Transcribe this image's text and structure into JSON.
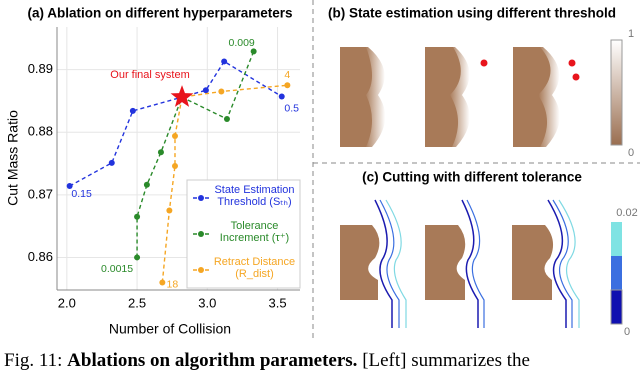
{
  "chart_data": {
    "type": "line",
    "title": "(a) Ablation on different hyperparameters",
    "x_label": "Number of Collision",
    "y_label": "Cut Mass Ratio",
    "xlim": [
      1.93,
      3.66
    ],
    "ylim": [
      0.8548,
      0.8968
    ],
    "xticks": [
      {
        "value": 2,
        "label": "2.0"
      },
      2.5,
      {
        "value": 3,
        "label": "3.0"
      },
      3.5
    ],
    "yticks": [
      0.86,
      0.87,
      0.88,
      0.89
    ],
    "grid": true,
    "legend": "lower right",
    "highlight": {
      "label": "Our final system",
      "x": 2.82,
      "y": 0.8856,
      "color": "#e8141c"
    },
    "series": [
      {
        "name": "State Estimation Threshold (Sₜₕ)",
        "color": "#2233dd",
        "x": [
          2.02,
          2.32,
          2.47,
          2.82,
          2.99,
          3.12,
          3.53
        ],
        "values": [
          0.8714,
          0.8751,
          0.8834,
          0.8856,
          0.8867,
          0.8913,
          0.8857
        ],
        "point_labels": [
          "0.15",
          null,
          null,
          null,
          null,
          null,
          "0.5"
        ]
      },
      {
        "name": "Tolerance Increment (τ⁺)",
        "color": "#2a8a2a",
        "x": [
          2.5,
          2.5,
          2.57,
          2.67,
          2.82,
          3.14,
          3.33
        ],
        "values": [
          0.86,
          0.8665,
          0.8716,
          0.8768,
          0.8856,
          0.8821,
          0.8929
        ],
        "point_labels": [
          "0.0015",
          null,
          null,
          null,
          null,
          null,
          "0.009"
        ]
      },
      {
        "name": "Retract Distance (R_dist)",
        "color": "#f5a623",
        "x": [
          2.68,
          2.73,
          2.77,
          2.77,
          2.82,
          3.1,
          3.57
        ],
        "values": [
          0.856,
          0.8675,
          0.8746,
          0.8794,
          0.8856,
          0.8865,
          0.8875
        ],
        "point_labels": [
          "18",
          null,
          null,
          null,
          null,
          null,
          "4"
        ]
      }
    ]
  },
  "panel_b": {
    "title": "(b) State estimation using different threshold",
    "colorbar_top": "1",
    "colorbar_bottom": "0"
  },
  "panel_c": {
    "title": "(c) Cutting with different tolerance",
    "colorbar_top": "0.02",
    "colorbar_bottom": "0"
  },
  "caption": {
    "prefix": "Fig. 11:",
    "bold": "Ablations on algorithm parameters.",
    "rest": "[Left] summarizes the"
  }
}
